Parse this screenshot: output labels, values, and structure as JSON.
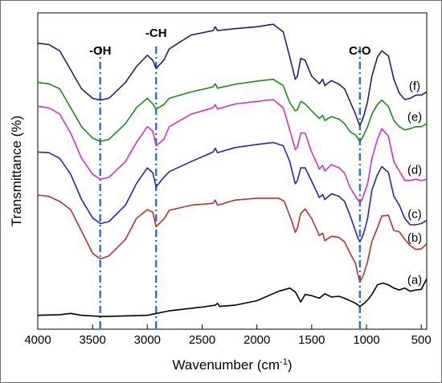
{
  "chart_data": {
    "type": "line",
    "title": "",
    "xlabel": "Wavenumber (cm",
    "xlabel_superscript": "-1",
    "xlabel_suffix": ")",
    "ylabel": "Transmittance (%)",
    "xlim": [
      4000,
      450
    ],
    "x_reversed": true,
    "ylim": [
      0,
      1
    ],
    "y_ticks_shown": false,
    "grid": false,
    "x_ticks": [
      4000,
      3500,
      3000,
      2500,
      2000,
      1500,
      1000,
      500
    ],
    "x_tick_labels": [
      "4000",
      "3500",
      "3000",
      "2500",
      "2000",
      "1500",
      "1000",
      "500"
    ],
    "reference_lines": [
      {
        "x": 3430,
        "label": "-OH",
        "color": "#2a6fd6"
      },
      {
        "x": 2920,
        "label": "-CH",
        "color": "#2a6fd6"
      },
      {
        "x": 1060,
        "label": "C-O",
        "color": "#2a6fd6"
      }
    ],
    "series": [
      {
        "name": "(a)",
        "color": "#000000",
        "points": [
          [
            4000,
            0.044
          ],
          [
            3800,
            0.046
          ],
          [
            3700,
            0.05
          ],
          [
            3600,
            0.044
          ],
          [
            3400,
            0.04
          ],
          [
            3000,
            0.044
          ],
          [
            2800,
            0.058
          ],
          [
            2500,
            0.07
          ],
          [
            2380,
            0.076
          ],
          [
            2360,
            0.082
          ],
          [
            2340,
            0.072
          ],
          [
            2200,
            0.076
          ],
          [
            2000,
            0.09
          ],
          [
            1800,
            0.12
          ],
          [
            1700,
            0.13
          ],
          [
            1650,
            0.118
          ],
          [
            1630,
            0.106
          ],
          [
            1600,
            0.086
          ],
          [
            1560,
            0.11
          ],
          [
            1500,
            0.106
          ],
          [
            1430,
            0.098
          ],
          [
            1380,
            0.112
          ],
          [
            1320,
            0.102
          ],
          [
            1250,
            0.104
          ],
          [
            1200,
            0.098
          ],
          [
            1150,
            0.09
          ],
          [
            1100,
            0.082
          ],
          [
            1060,
            0.072
          ],
          [
            1020,
            0.082
          ],
          [
            980,
            0.096
          ],
          [
            950,
            0.11
          ],
          [
            900,
            0.14
          ],
          [
            850,
            0.146
          ],
          [
            800,
            0.14
          ],
          [
            750,
            0.13
          ],
          [
            700,
            0.124
          ],
          [
            650,
            0.13
          ],
          [
            600,
            0.12
          ],
          [
            550,
            0.124
          ],
          [
            500,
            0.126
          ],
          [
            450,
            0.16
          ]
        ]
      },
      {
        "name": "(b)",
        "color": "#b5342e",
        "points": [
          [
            4000,
            0.424
          ],
          [
            3900,
            0.42
          ],
          [
            3800,
            0.404
          ],
          [
            3700,
            0.378
          ],
          [
            3600,
            0.31
          ],
          [
            3500,
            0.24
          ],
          [
            3430,
            0.222
          ],
          [
            3350,
            0.232
          ],
          [
            3200,
            0.284
          ],
          [
            3100,
            0.35
          ],
          [
            3000,
            0.378
          ],
          [
            2950,
            0.37
          ],
          [
            2920,
            0.324
          ],
          [
            2850,
            0.348
          ],
          [
            2800,
            0.376
          ],
          [
            2600,
            0.392
          ],
          [
            2400,
            0.398
          ],
          [
            2380,
            0.408
          ],
          [
            2360,
            0.392
          ],
          [
            2200,
            0.408
          ],
          [
            2000,
            0.414
          ],
          [
            1800,
            0.414
          ],
          [
            1750,
            0.404
          ],
          [
            1680,
            0.34
          ],
          [
            1650,
            0.306
          ],
          [
            1630,
            0.32
          ],
          [
            1600,
            0.366
          ],
          [
            1560,
            0.38
          ],
          [
            1500,
            0.35
          ],
          [
            1430,
            0.296
          ],
          [
            1400,
            0.304
          ],
          [
            1380,
            0.28
          ],
          [
            1320,
            0.294
          ],
          [
            1250,
            0.29
          ],
          [
            1200,
            0.276
          ],
          [
            1150,
            0.24
          ],
          [
            1100,
            0.208
          ],
          [
            1080,
            0.176
          ],
          [
            1060,
            0.15
          ],
          [
            1040,
            0.162
          ],
          [
            1020,
            0.18
          ],
          [
            990,
            0.214
          ],
          [
            950,
            0.278
          ],
          [
            900,
            0.32
          ],
          [
            860,
            0.358
          ],
          [
            800,
            0.36
          ],
          [
            750,
            0.312
          ],
          [
            700,
            0.308
          ],
          [
            650,
            0.284
          ],
          [
            600,
            0.264
          ],
          [
            550,
            0.252
          ],
          [
            500,
            0.254
          ],
          [
            450,
            0.27
          ]
        ]
      },
      {
        "name": "(c)",
        "color": "#2424c8",
        "points": [
          [
            4000,
            0.56
          ],
          [
            3900,
            0.558
          ],
          [
            3800,
            0.54
          ],
          [
            3700,
            0.49
          ],
          [
            3600,
            0.41
          ],
          [
            3500,
            0.352
          ],
          [
            3430,
            0.334
          ],
          [
            3350,
            0.34
          ],
          [
            3200,
            0.392
          ],
          [
            3100,
            0.46
          ],
          [
            3000,
            0.51
          ],
          [
            2950,
            0.494
          ],
          [
            2920,
            0.45
          ],
          [
            2850,
            0.48
          ],
          [
            2800,
            0.498
          ],
          [
            2600,
            0.53
          ],
          [
            2400,
            0.56
          ],
          [
            2380,
            0.572
          ],
          [
            2360,
            0.558
          ],
          [
            2200,
            0.574
          ],
          [
            2000,
            0.584
          ],
          [
            1850,
            0.59
          ],
          [
            1760,
            0.58
          ],
          [
            1700,
            0.53
          ],
          [
            1650,
            0.46
          ],
          [
            1630,
            0.47
          ],
          [
            1600,
            0.51
          ],
          [
            1560,
            0.51
          ],
          [
            1500,
            0.468
          ],
          [
            1430,
            0.416
          ],
          [
            1400,
            0.426
          ],
          [
            1380,
            0.41
          ],
          [
            1320,
            0.428
          ],
          [
            1250,
            0.42
          ],
          [
            1200,
            0.404
          ],
          [
            1150,
            0.36
          ],
          [
            1100,
            0.31
          ],
          [
            1080,
            0.29
          ],
          [
            1060,
            0.276
          ],
          [
            1040,
            0.29
          ],
          [
            1020,
            0.31
          ],
          [
            990,
            0.35
          ],
          [
            950,
            0.44
          ],
          [
            900,
            0.488
          ],
          [
            860,
            0.514
          ],
          [
            800,
            0.496
          ],
          [
            750,
            0.42
          ],
          [
            700,
            0.392
          ],
          [
            650,
            0.35
          ],
          [
            600,
            0.33
          ],
          [
            550,
            0.33
          ],
          [
            500,
            0.334
          ],
          [
            450,
            0.344
          ]
        ]
      },
      {
        "name": "(d)",
        "color": "#cc33cc",
        "points": [
          [
            4000,
            0.704
          ],
          [
            3900,
            0.7
          ],
          [
            3800,
            0.68
          ],
          [
            3700,
            0.62
          ],
          [
            3600,
            0.54
          ],
          [
            3500,
            0.49
          ],
          [
            3430,
            0.474
          ],
          [
            3350,
            0.48
          ],
          [
            3200,
            0.53
          ],
          [
            3100,
            0.59
          ],
          [
            3000,
            0.64
          ],
          [
            2950,
            0.626
          ],
          [
            2920,
            0.58
          ],
          [
            2850,
            0.6
          ],
          [
            2800,
            0.64
          ],
          [
            2600,
            0.68
          ],
          [
            2400,
            0.7
          ],
          [
            2380,
            0.71
          ],
          [
            2360,
            0.696
          ],
          [
            2200,
            0.712
          ],
          [
            2000,
            0.72
          ],
          [
            1850,
            0.726
          ],
          [
            1760,
            0.7
          ],
          [
            1700,
            0.63
          ],
          [
            1650,
            0.568
          ],
          [
            1630,
            0.576
          ],
          [
            1600,
            0.62
          ],
          [
            1560,
            0.62
          ],
          [
            1500,
            0.56
          ],
          [
            1430,
            0.506
          ],
          [
            1400,
            0.518
          ],
          [
            1380,
            0.5
          ],
          [
            1320,
            0.52
          ],
          [
            1250,
            0.51
          ],
          [
            1200,
            0.494
          ],
          [
            1150,
            0.448
          ],
          [
            1100,
            0.42
          ],
          [
            1080,
            0.41
          ],
          [
            1060,
            0.4
          ],
          [
            1040,
            0.41
          ],
          [
            1020,
            0.43
          ],
          [
            990,
            0.46
          ],
          [
            950,
            0.54
          ],
          [
            900,
            0.6
          ],
          [
            860,
            0.634
          ],
          [
            800,
            0.61
          ],
          [
            750,
            0.53
          ],
          [
            700,
            0.5
          ],
          [
            650,
            0.47
          ],
          [
            600,
            0.47
          ],
          [
            550,
            0.474
          ],
          [
            500,
            0.47
          ],
          [
            450,
            0.474
          ]
        ]
      },
      {
        "name": "(e)",
        "color": "#1d8a1d",
        "points": [
          [
            4000,
            0.78
          ],
          [
            3900,
            0.776
          ],
          [
            3800,
            0.76
          ],
          [
            3700,
            0.7
          ],
          [
            3600,
            0.64
          ],
          [
            3500,
            0.604
          ],
          [
            3430,
            0.594
          ],
          [
            3350,
            0.6
          ],
          [
            3200,
            0.65
          ],
          [
            3100,
            0.7
          ],
          [
            3000,
            0.73
          ],
          [
            2950,
            0.712
          ],
          [
            2920,
            0.696
          ],
          [
            2850,
            0.71
          ],
          [
            2800,
            0.73
          ],
          [
            2600,
            0.75
          ],
          [
            2400,
            0.766
          ],
          [
            2380,
            0.776
          ],
          [
            2360,
            0.762
          ],
          [
            2200,
            0.774
          ],
          [
            2000,
            0.784
          ],
          [
            1850,
            0.79
          ],
          [
            1760,
            0.77
          ],
          [
            1700,
            0.716
          ],
          [
            1650,
            0.69
          ],
          [
            1630,
            0.694
          ],
          [
            1600,
            0.72
          ],
          [
            1560,
            0.712
          ],
          [
            1500,
            0.69
          ],
          [
            1430,
            0.666
          ],
          [
            1400,
            0.676
          ],
          [
            1380,
            0.66
          ],
          [
            1320,
            0.672
          ],
          [
            1250,
            0.664
          ],
          [
            1200,
            0.65
          ],
          [
            1150,
            0.624
          ],
          [
            1100,
            0.614
          ],
          [
            1080,
            0.604
          ],
          [
            1060,
            0.594
          ],
          [
            1040,
            0.604
          ],
          [
            1020,
            0.618
          ],
          [
            990,
            0.64
          ],
          [
            950,
            0.68
          ],
          [
            900,
            0.71
          ],
          [
            860,
            0.724
          ],
          [
            800,
            0.704
          ],
          [
            750,
            0.66
          ],
          [
            700,
            0.64
          ],
          [
            650,
            0.63
          ],
          [
            600,
            0.634
          ],
          [
            550,
            0.64
          ],
          [
            500,
            0.64
          ],
          [
            450,
            0.65
          ]
        ]
      },
      {
        "name": "(f)",
        "color": "#1f1f80",
        "points": [
          [
            4000,
            0.904
          ],
          [
            3900,
            0.9
          ],
          [
            3800,
            0.88
          ],
          [
            3700,
            0.82
          ],
          [
            3600,
            0.76
          ],
          [
            3500,
            0.73
          ],
          [
            3430,
            0.724
          ],
          [
            3350,
            0.73
          ],
          [
            3200,
            0.78
          ],
          [
            3100,
            0.83
          ],
          [
            3000,
            0.866
          ],
          [
            2950,
            0.85
          ],
          [
            2920,
            0.824
          ],
          [
            2850,
            0.85
          ],
          [
            2800,
            0.886
          ],
          [
            2600,
            0.93
          ],
          [
            2400,
            0.944
          ],
          [
            2380,
            0.956
          ],
          [
            2360,
            0.944
          ],
          [
            2200,
            0.95
          ],
          [
            2000,
            0.956
          ],
          [
            1850,
            0.964
          ],
          [
            1760,
            0.94
          ],
          [
            1700,
            0.86
          ],
          [
            1650,
            0.79
          ],
          [
            1630,
            0.8
          ],
          [
            1600,
            0.856
          ],
          [
            1560,
            0.85
          ],
          [
            1500,
            0.8
          ],
          [
            1430,
            0.776
          ],
          [
            1400,
            0.79
          ],
          [
            1380,
            0.77
          ],
          [
            1320,
            0.786
          ],
          [
            1250,
            0.774
          ],
          [
            1200,
            0.76
          ],
          [
            1150,
            0.72
          ],
          [
            1100,
            0.68
          ],
          [
            1080,
            0.66
          ],
          [
            1060,
            0.644
          ],
          [
            1040,
            0.66
          ],
          [
            1020,
            0.68
          ],
          [
            990,
            0.72
          ],
          [
            950,
            0.8
          ],
          [
            900,
            0.86
          ],
          [
            860,
            0.88
          ],
          [
            800,
            0.864
          ],
          [
            750,
            0.79
          ],
          [
            700,
            0.746
          ],
          [
            650,
            0.726
          ],
          [
            600,
            0.73
          ],
          [
            550,
            0.74
          ],
          [
            500,
            0.74
          ],
          [
            450,
            0.75
          ]
        ]
      }
    ]
  }
}
